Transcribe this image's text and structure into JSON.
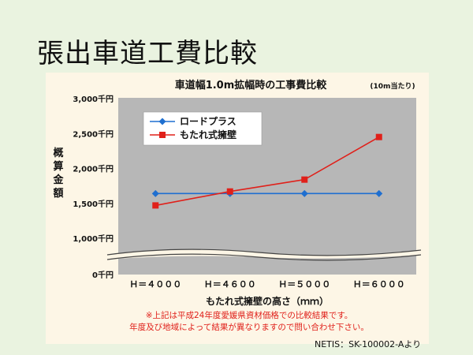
{
  "slide": {
    "title": "張出車道工費比較",
    "source": "NETIS：SK-100002-Aより"
  },
  "chart_data": {
    "type": "line",
    "title": "車道幅1.0m拡幅時の工事費比較",
    "subtitle": "(10m当たり)",
    "xlabel": "もたれ式擁壁の高さ（ｍｍ）",
    "ylabel": "概算金額",
    "categories": [
      "Ｈ＝４０００",
      "Ｈ＝４６００",
      "Ｈ＝５０００",
      "Ｈ＝６０００"
    ],
    "y_ticks": [
      {
        "value": 0,
        "label": "0千円"
      },
      {
        "value": 1000,
        "label": "1,000千円"
      },
      {
        "value": 1500,
        "label": "1,500千円"
      },
      {
        "value": 2000,
        "label": "2,000千円"
      },
      {
        "value": 2500,
        "label": "2,500千円"
      },
      {
        "value": 3000,
        "label": "3,000千円"
      }
    ],
    "ylim": [
      0,
      3000
    ],
    "axis_break": true,
    "grid": false,
    "legend_position": "top-left",
    "series": [
      {
        "name": "ロードプラス",
        "color": "#1f6fd0",
        "marker": "diamond",
        "values": [
          1640,
          1640,
          1640,
          1640
        ]
      },
      {
        "name": "もたれ式擁壁",
        "color": "#e0201a",
        "marker": "square",
        "values": [
          1470,
          1670,
          1840,
          2450
        ]
      }
    ],
    "notes": [
      "※上記は平成24年度愛媛県資材価格での比較結果です。",
      "年度及び地域によって結果が異なりますので問い合わせ下さい。"
    ],
    "colors": {
      "plot_background": "#b7b7b7",
      "note": "#e0201a"
    }
  }
}
